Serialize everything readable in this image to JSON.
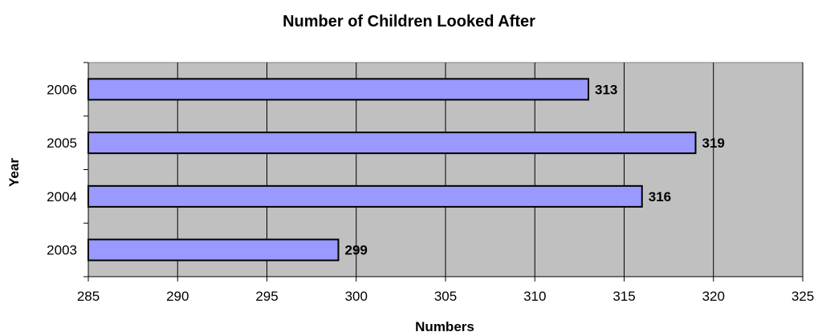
{
  "chart_data": {
    "type": "bar",
    "orientation": "horizontal",
    "title": "Number of Children Looked After",
    "xlabel": "Numbers",
    "ylabel": "Year",
    "categories": [
      "2003",
      "2004",
      "2005",
      "2006"
    ],
    "values": [
      299,
      316,
      319,
      313
    ],
    "data_labels": [
      "299",
      "316",
      "319",
      "313"
    ],
    "xlim": [
      285,
      325
    ],
    "x_ticks": [
      "285",
      "290",
      "295",
      "300",
      "305",
      "310",
      "315",
      "320",
      "325"
    ],
    "grid": "vertical",
    "legend": "none",
    "colors": {
      "bar": "#9999ff",
      "plot_bg": "#c0c0c0",
      "grid": "#000000"
    }
  }
}
